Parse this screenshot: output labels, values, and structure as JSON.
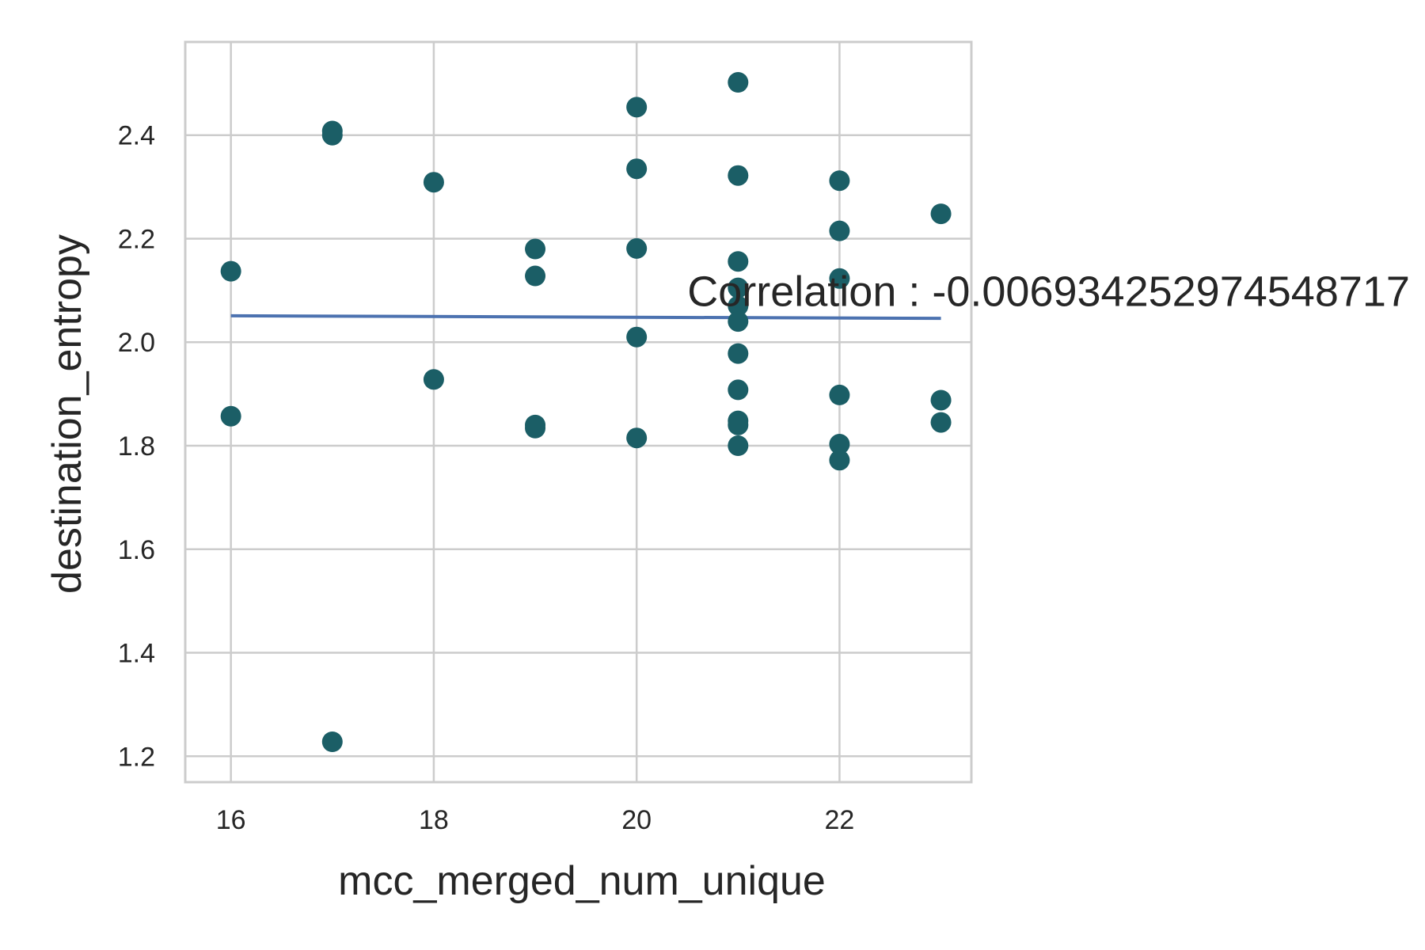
{
  "chart_data": {
    "type": "scatter",
    "title": "",
    "xlabel": "mcc_merged_num_unique",
    "ylabel": "destination_entropy",
    "xlim": [
      15.55,
      23.3
    ],
    "ylim": [
      1.15,
      2.58
    ],
    "x_ticks": [
      16,
      18,
      20,
      22
    ],
    "y_ticks": [
      1.2,
      1.4,
      1.6,
      1.8,
      2.0,
      2.2,
      2.4
    ],
    "x_tick_labels": [
      "16",
      "18",
      "20",
      "22"
    ],
    "y_tick_labels": [
      "1.2",
      "1.4",
      "1.6",
      "1.8",
      "2.0",
      "2.2",
      "2.4"
    ],
    "grid": true,
    "point_color": "#1b5e66",
    "line_color": "#4c72b0",
    "points": [
      {
        "x": 16,
        "y": 2.137
      },
      {
        "x": 16,
        "y": 1.857
      },
      {
        "x": 17,
        "y": 2.408
      },
      {
        "x": 17,
        "y": 2.4
      },
      {
        "x": 17,
        "y": 1.228
      },
      {
        "x": 18,
        "y": 2.309
      },
      {
        "x": 18,
        "y": 1.928
      },
      {
        "x": 19,
        "y": 2.18
      },
      {
        "x": 19,
        "y": 2.128
      },
      {
        "x": 19,
        "y": 1.84
      },
      {
        "x": 19,
        "y": 1.834
      },
      {
        "x": 20,
        "y": 2.454
      },
      {
        "x": 20,
        "y": 2.335
      },
      {
        "x": 20,
        "y": 2.181
      },
      {
        "x": 20,
        "y": 2.01
      },
      {
        "x": 20,
        "y": 1.815
      },
      {
        "x": 21,
        "y": 2.502
      },
      {
        "x": 21,
        "y": 2.322
      },
      {
        "x": 21,
        "y": 2.156
      },
      {
        "x": 21,
        "y": 2.105
      },
      {
        "x": 21,
        "y": 2.07
      },
      {
        "x": 21,
        "y": 2.04
      },
      {
        "x": 21,
        "y": 1.978
      },
      {
        "x": 21,
        "y": 1.908
      },
      {
        "x": 21,
        "y": 1.848
      },
      {
        "x": 21,
        "y": 1.84
      },
      {
        "x": 21,
        "y": 1.8
      },
      {
        "x": 22,
        "y": 2.312
      },
      {
        "x": 22,
        "y": 2.215
      },
      {
        "x": 22,
        "y": 2.123
      },
      {
        "x": 22,
        "y": 1.898
      },
      {
        "x": 22,
        "y": 1.803
      },
      {
        "x": 22,
        "y": 1.772
      },
      {
        "x": 23,
        "y": 2.248
      },
      {
        "x": 23,
        "y": 1.888
      },
      {
        "x": 23,
        "y": 1.845
      }
    ],
    "trend_line": {
      "x": [
        16,
        23
      ],
      "y": [
        2.051,
        2.046
      ]
    },
    "annotation": {
      "text": "Correlation : -0.006934252974548717",
      "x": 20.5,
      "y": 2.07
    }
  }
}
